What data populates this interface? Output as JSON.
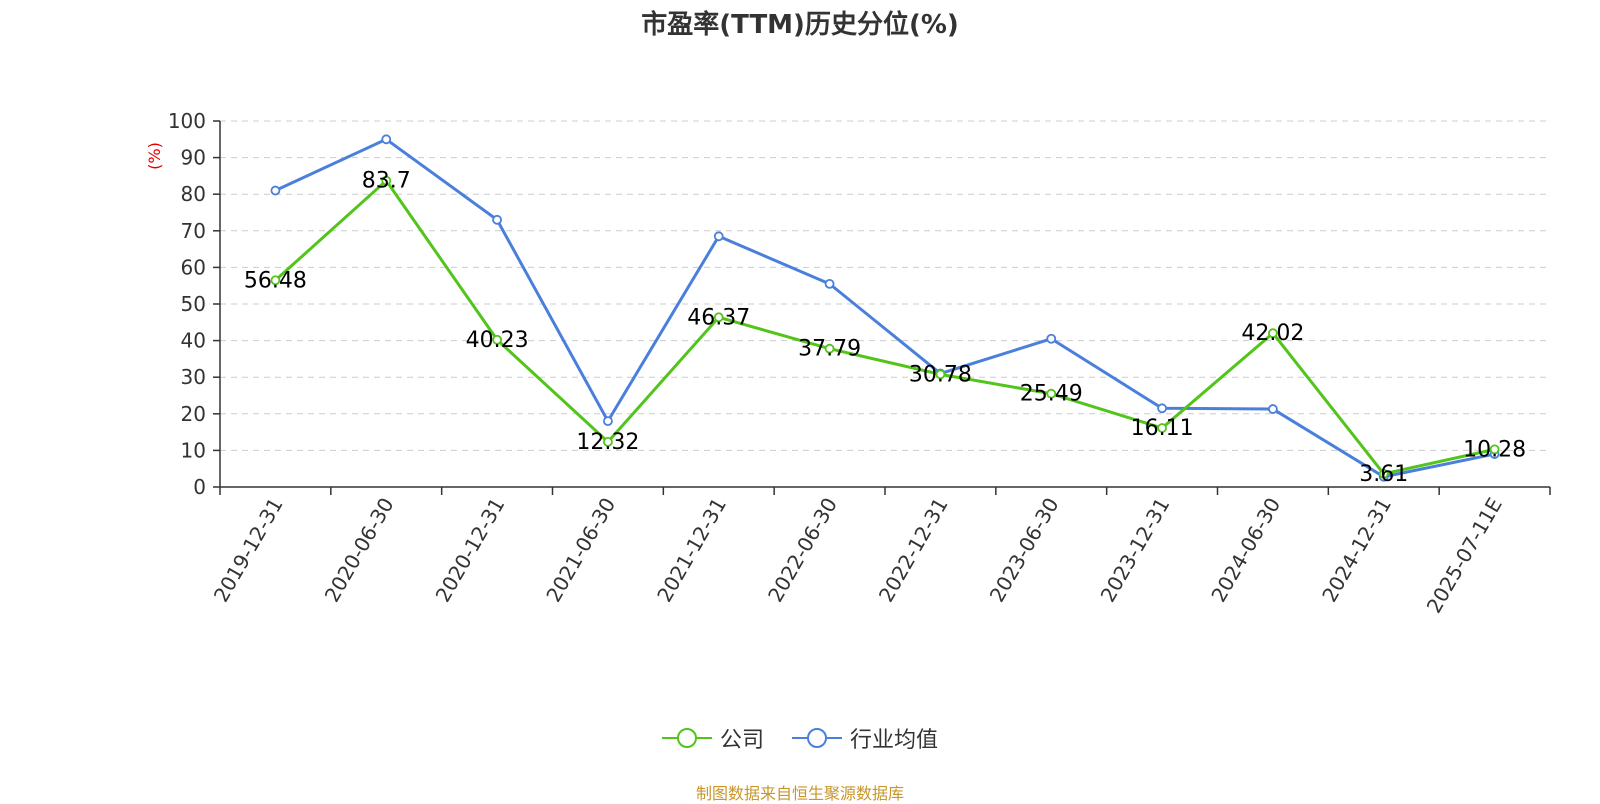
{
  "chart_data": {
    "type": "line",
    "title": "市盈率(TTM)历史分位(%)",
    "ylabel": "(%)",
    "xlabel": "",
    "ylim": [
      0,
      100
    ],
    "yticks": [
      0,
      10,
      20,
      30,
      40,
      50,
      60,
      70,
      80,
      90,
      100
    ],
    "grid": true,
    "legend_position": "bottom",
    "categories": [
      "2019-12-31",
      "2020-06-30",
      "2020-12-31",
      "2021-06-30",
      "2021-12-31",
      "2022-06-30",
      "2022-12-31",
      "2023-06-30",
      "2023-12-31",
      "2024-06-30",
      "2024-12-31",
      "2025-07-11E"
    ],
    "series": [
      {
        "name": "公司",
        "color": "#52c41a",
        "values": [
          56.48,
          83.7,
          40.23,
          12.32,
          46.37,
          37.79,
          30.78,
          25.49,
          16.11,
          42.02,
          3.61,
          10.28
        ],
        "labels": [
          "56.48",
          "83.7",
          "40.23",
          "12.32",
          "46.37",
          "37.79",
          "30.78",
          "25.49",
          "16.11",
          "42.02",
          "3.61",
          "10.28"
        ]
      },
      {
        "name": "行业均值",
        "color": "#4a7fdc",
        "values": [
          81.0,
          95.0,
          73.0,
          18.0,
          68.5,
          55.5,
          31.0,
          40.5,
          21.5,
          21.3,
          2.8,
          9.0
        ]
      }
    ]
  },
  "footer": {
    "source": "制图数据来自恒生聚源数据库"
  }
}
